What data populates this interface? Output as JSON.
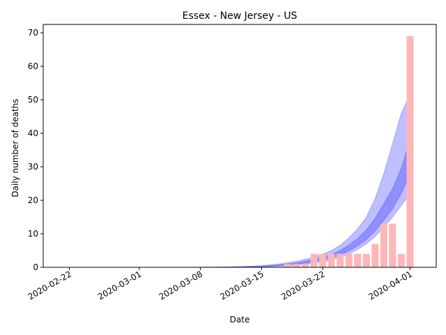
{
  "chart_data": {
    "type": "bar",
    "title": "Essex - New Jersey - US",
    "xlabel": "Date",
    "ylabel": "Daily number of deaths",
    "ylim": [
      0,
      72.5
    ],
    "xlim": [
      "2020-02-19",
      "2020-04-04"
    ],
    "grid": false,
    "x_ticks": [
      "2020-02-22",
      "2020-03-01",
      "2020-03-08",
      "2020-03-15",
      "2020-03-22",
      "2020-04-01"
    ],
    "y_ticks": [
      0,
      10,
      20,
      30,
      40,
      50,
      60,
      70
    ],
    "bar_color": "#ffb6b6",
    "band_color": "#0000ff",
    "series": [
      {
        "type": "bar",
        "x": [
          "2020-03-18",
          "2020-03-19",
          "2020-03-20",
          "2020-03-21",
          "2020-03-22",
          "2020-03-23",
          "2020-03-24",
          "2020-03-25",
          "2020-03-26",
          "2020-03-27",
          "2020-03-28",
          "2020-03-29",
          "2020-03-30",
          "2020-03-31",
          "2020-04-01"
        ],
        "values": [
          1,
          1,
          1,
          4,
          4,
          4,
          4,
          4,
          4,
          4,
          7,
          13,
          13,
          4,
          69
        ]
      },
      {
        "type": "band",
        "x": [
          "2020-03-07",
          "2020-03-09",
          "2020-03-11",
          "2020-03-13",
          "2020-03-15",
          "2020-03-17",
          "2020-03-19",
          "2020-03-21",
          "2020-03-22",
          "2020-03-23",
          "2020-03-24",
          "2020-03-25",
          "2020-03-26",
          "2020-03-27",
          "2020-03-28",
          "2020-03-29",
          "2020-03-30",
          "2020-03-31",
          "2020-04-01"
        ],
        "lower": [
          0,
          0.01,
          0.03,
          0.06,
          0.15,
          0.3,
          0.6,
          1.2,
          1.6,
          2.2,
          3.0,
          4.0,
          5.3,
          7.0,
          9.2,
          12.0,
          15.0,
          18.5,
          22.0
        ],
        "upper": [
          0.02,
          0.05,
          0.12,
          0.25,
          0.5,
          1.0,
          1.8,
          3.0,
          3.9,
          5.0,
          6.6,
          8.8,
          11.5,
          15.0,
          20.5,
          28.0,
          37.0,
          46.0,
          51.5
        ]
      },
      {
        "type": "band",
        "x": [
          "2020-03-07",
          "2020-03-09",
          "2020-03-11",
          "2020-03-13",
          "2020-03-15",
          "2020-03-17",
          "2020-03-19",
          "2020-03-21",
          "2020-03-22",
          "2020-03-23",
          "2020-03-24",
          "2020-03-25",
          "2020-03-26",
          "2020-03-27",
          "2020-03-28",
          "2020-03-29",
          "2020-03-30",
          "2020-03-31",
          "2020-04-01"
        ],
        "lower": [
          0.01,
          0.02,
          0.05,
          0.1,
          0.25,
          0.5,
          0.9,
          1.6,
          2.1,
          2.8,
          3.7,
          4.9,
          6.4,
          8.3,
          10.8,
          14.0,
          17.5,
          22.0,
          28.0
        ],
        "upper": [
          0.01,
          0.03,
          0.08,
          0.15,
          0.35,
          0.7,
          1.3,
          2.3,
          3.0,
          3.8,
          5.0,
          6.6,
          8.6,
          11.2,
          14.6,
          19.0,
          23.5,
          29.5,
          38.0
        ]
      }
    ]
  }
}
